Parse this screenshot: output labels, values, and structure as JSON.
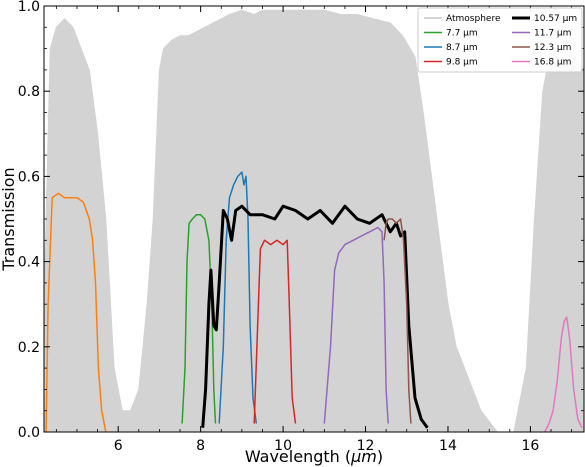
{
  "chart_data": {
    "type": "line",
    "xlabel": "Wavelength (",
    "xlabel_unit": "μm",
    "xlabel_close": ")",
    "ylabel": "Transmission",
    "xlim": [
      4.2,
      17.3
    ],
    "ylim": [
      0.0,
      1.0
    ],
    "x_ticks": [
      6,
      8,
      10,
      12,
      14,
      16
    ],
    "y_ticks": [
      0.0,
      0.2,
      0.4,
      0.6,
      0.8,
      1.0
    ],
    "x_tick_labels": [
      "6",
      "8",
      "10",
      "12",
      "14",
      "16"
    ],
    "y_tick_labels": [
      "0.0",
      "0.2",
      "0.4",
      "0.6",
      "0.8",
      "1.0"
    ],
    "grid": false,
    "legend_position": "top-right",
    "series": [
      {
        "name": "Atmosphere",
        "color": "#d3d3d3",
        "x": [
          4.2,
          4.35,
          4.5,
          4.7,
          4.9,
          5.1,
          5.3,
          5.5,
          5.7,
          5.9,
          6.1,
          6.3,
          6.5,
          6.7,
          6.85,
          7.0,
          7.1,
          7.3,
          7.5,
          7.7,
          7.9,
          8.1,
          8.3,
          8.5,
          8.7,
          9.0,
          9.3,
          9.5,
          9.8,
          10.2,
          10.6,
          11.0,
          11.4,
          11.8,
          12.2,
          12.6,
          12.9,
          13.2,
          13.4,
          13.6,
          13.8,
          14.0,
          14.2,
          14.4,
          14.6,
          14.8,
          15.2,
          15.6,
          15.9,
          16.1,
          16.3,
          16.5,
          16.7,
          16.9,
          17.1,
          17.3
        ],
        "y": [
          0.3,
          0.9,
          0.95,
          0.97,
          0.95,
          0.9,
          0.85,
          0.7,
          0.5,
          0.15,
          0.05,
          0.05,
          0.1,
          0.3,
          0.5,
          0.85,
          0.9,
          0.92,
          0.93,
          0.93,
          0.94,
          0.95,
          0.96,
          0.97,
          0.98,
          0.99,
          0.98,
          0.99,
          0.99,
          0.99,
          0.99,
          0.99,
          0.98,
          0.98,
          0.97,
          0.96,
          0.93,
          0.88,
          0.75,
          0.6,
          0.45,
          0.3,
          0.2,
          0.15,
          0.1,
          0.05,
          0.0,
          0.0,
          0.15,
          0.5,
          0.8,
          0.9,
          0.85,
          0.9,
          0.88,
          0.85
        ]
      },
      {
        "name": "7.7 μm",
        "color": "#2ca02c",
        "x": [
          7.55,
          7.62,
          7.67,
          7.72,
          7.8,
          7.9,
          8.0,
          8.1,
          8.2,
          8.27,
          8.32,
          8.36
        ],
        "y": [
          0.02,
          0.15,
          0.4,
          0.49,
          0.5,
          0.51,
          0.51,
          0.5,
          0.45,
          0.3,
          0.1,
          0.02
        ]
      },
      {
        "name": "8.7 μm",
        "color": "#1f77b4",
        "x": [
          8.45,
          8.55,
          8.62,
          8.7,
          8.8,
          8.9,
          9.0,
          9.05,
          9.1,
          9.15,
          9.2,
          9.27,
          9.35
        ],
        "y": [
          0.02,
          0.2,
          0.45,
          0.55,
          0.58,
          0.6,
          0.61,
          0.58,
          0.6,
          0.5,
          0.25,
          0.08,
          0.02
        ]
      },
      {
        "name": "9.8 μm",
        "color": "#d62728",
        "x": [
          9.3,
          9.4,
          9.45,
          9.55,
          9.7,
          9.85,
          10.0,
          10.1,
          10.15,
          10.22,
          10.3
        ],
        "y": [
          0.02,
          0.3,
          0.43,
          0.45,
          0.44,
          0.45,
          0.44,
          0.45,
          0.3,
          0.08,
          0.02
        ]
      },
      {
        "name": "10.57 μm",
        "color": "#000000",
        "width": 3,
        "x": [
          8.05,
          8.12,
          8.2,
          8.25,
          8.32,
          8.38,
          8.45,
          8.55,
          8.65,
          8.75,
          8.85,
          9.0,
          9.2,
          9.5,
          9.8,
          10.0,
          10.3,
          10.6,
          10.9,
          11.2,
          11.5,
          11.8,
          12.1,
          12.4,
          12.6,
          12.75,
          12.85,
          12.95,
          13.05,
          13.2,
          13.35,
          13.5
        ],
        "y": [
          0.01,
          0.1,
          0.3,
          0.38,
          0.25,
          0.24,
          0.35,
          0.52,
          0.5,
          0.45,
          0.52,
          0.53,
          0.51,
          0.51,
          0.5,
          0.53,
          0.52,
          0.5,
          0.52,
          0.49,
          0.53,
          0.5,
          0.49,
          0.51,
          0.47,
          0.49,
          0.46,
          0.47,
          0.25,
          0.08,
          0.03,
          0.01
        ]
      },
      {
        "name": "11.7 μm",
        "color": "#9467bd",
        "x": [
          11.0,
          11.15,
          11.25,
          11.35,
          11.5,
          11.7,
          11.9,
          12.1,
          12.3,
          12.4,
          12.45,
          12.5,
          12.55
        ],
        "y": [
          0.02,
          0.2,
          0.38,
          0.42,
          0.44,
          0.45,
          0.46,
          0.47,
          0.48,
          0.47,
          0.35,
          0.1,
          0.02
        ]
      },
      {
        "name": "12.3 μm",
        "color": "#8c564b",
        "x": [
          12.45,
          12.5,
          12.55,
          12.65,
          12.75,
          12.85,
          12.92,
          13.0,
          13.05,
          13.1
        ],
        "y": [
          0.45,
          0.49,
          0.5,
          0.5,
          0.49,
          0.5,
          0.45,
          0.3,
          0.1,
          0.02
        ]
      },
      {
        "name": "16.8 μm",
        "color": "#e377c2",
        "x": [
          16.35,
          16.45,
          16.55,
          16.65,
          16.75,
          16.82,
          16.88,
          16.95,
          17.05,
          17.15,
          17.25
        ],
        "y": [
          0.0,
          0.02,
          0.05,
          0.12,
          0.22,
          0.26,
          0.27,
          0.22,
          0.1,
          0.03,
          0.01
        ]
      },
      {
        "name": "",
        "color": "#ff7f0e",
        "x": [
          4.25,
          4.3,
          4.4,
          4.55,
          4.7,
          4.85,
          5.0,
          5.15,
          5.3,
          5.38,
          5.45,
          5.52,
          5.6,
          5.7
        ],
        "y": [
          0.0,
          0.3,
          0.55,
          0.56,
          0.55,
          0.55,
          0.55,
          0.54,
          0.5,
          0.45,
          0.35,
          0.15,
          0.05,
          0.0
        ]
      }
    ]
  },
  "legend": {
    "items": [
      {
        "label": "Atmosphere",
        "color": "#d3d3d3",
        "width": 2
      },
      {
        "label": "10.57 μm",
        "color": "#000000",
        "width": 3
      },
      {
        "label": "7.7 μm",
        "color": "#2ca02c",
        "width": 1.5
      },
      {
        "label": "11.7 μm",
        "color": "#9467bd",
        "width": 1.5
      },
      {
        "label": "8.7 μm",
        "color": "#1f77b4",
        "width": 1.5
      },
      {
        "label": "12.3 μm",
        "color": "#8c564b",
        "width": 1.5
      },
      {
        "label": "9.8 μm",
        "color": "#d62728",
        "width": 1.5
      },
      {
        "label": "16.8 μm",
        "color": "#e377c2",
        "width": 1.5
      }
    ]
  }
}
